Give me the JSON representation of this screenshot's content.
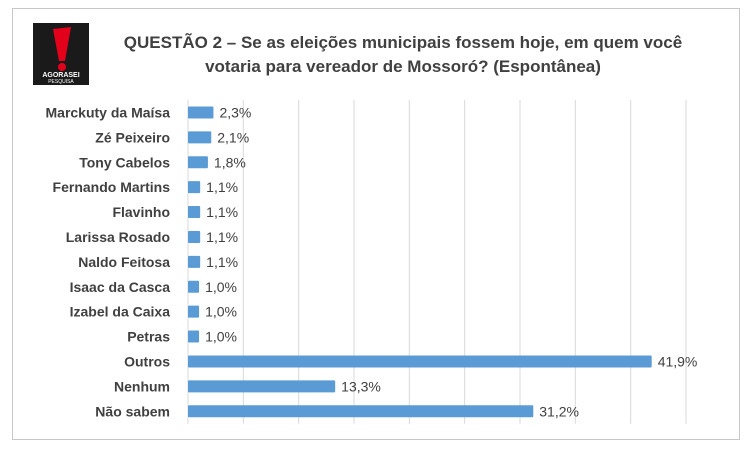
{
  "header": {
    "logo": {
      "brand_text": "AGORASEI",
      "sub_text": "PESQUISA",
      "mark": "exclamation-mark",
      "colors": {
        "bg": "#1a1a1a",
        "mark": "#e3001b",
        "text": "#ffffff"
      }
    },
    "title_line1": "QUESTÃO 2 – Se as eleições municipais fossem hoje, em quem você",
    "title_line2": "votaria para vereador de Mossoró? (Espontânea)"
  },
  "chart_data": {
    "type": "bar",
    "orientation": "horizontal",
    "title": "QUESTÃO 2 – Se as eleições municipais fossem hoje, em quem você votaria para vereador de Mossoró? (Espontânea)",
    "categories": [
      "Marckuty da Maísa",
      "Zé Peixeiro",
      "Tony Cabelos",
      "Fernando Martins",
      "Flavinho",
      "Larissa Rosado",
      "Naldo Feitosa",
      "Isaac da Casca",
      "Izabel da Caixa",
      "Petras",
      "Outros",
      "Nenhum",
      "Não sabem"
    ],
    "values": [
      2.3,
      2.1,
      1.8,
      1.1,
      1.1,
      1.1,
      1.1,
      1.0,
      1.0,
      1.0,
      41.9,
      13.3,
      31.2
    ],
    "value_labels": [
      "2,3%",
      "2,1%",
      "1,8%",
      "1,1%",
      "1,1%",
      "1,1%",
      "1,1%",
      "1,0%",
      "1,0%",
      "1,0%",
      "41,9%",
      "13,3%",
      "31,2%"
    ],
    "xlim": [
      0,
      45
    ],
    "grid": true,
    "bar_color": "#5b9bd5",
    "grid_color": "#d9d9d9"
  }
}
